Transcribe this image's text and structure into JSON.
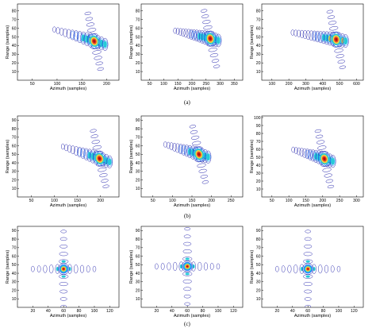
{
  "figure": {
    "captions": [
      "(a)",
      "(b)",
      "(c)"
    ],
    "panels": [
      {
        "row": 0,
        "col": 0,
        "xlabel": "Azimuth (samples)",
        "ylabel": "Range (samples)",
        "xticks": [
          50,
          100,
          150,
          200
        ],
        "yticks": [
          10,
          20,
          30,
          40,
          50,
          60,
          70,
          80
        ],
        "xlim": [
          20,
          225
        ],
        "ylim": [
          0,
          88
        ],
        "layout": "tilted",
        "center": [
          175,
          45
        ],
        "angle": -18,
        "nlobes": 7,
        "lobe_spacing": 14
      },
      {
        "row": 0,
        "col": 1,
        "xlabel": "Azimuth (samples)",
        "ylabel": "Range (samples)",
        "xticks": [
          50,
          100,
          150,
          200,
          250,
          300,
          350
        ],
        "yticks": [
          10,
          20,
          30,
          40,
          50,
          60,
          70,
          80
        ],
        "xlim": [
          20,
          380
        ],
        "ylim": [
          0,
          88
        ],
        "layout": "tilted",
        "center": [
          265,
          48
        ],
        "angle": -14,
        "nlobes": 9,
        "lobe_spacing": 18
      },
      {
        "row": 0,
        "col": 2,
        "xlabel": "Azimuth (samples)",
        "ylabel": "Range (samples)",
        "xticks": [
          100,
          200,
          300,
          400,
          500,
          600
        ],
        "yticks": [
          10,
          20,
          30,
          40,
          50,
          60,
          70,
          80
        ],
        "xlim": [
          40,
          640
        ],
        "ylim": [
          0,
          88
        ],
        "layout": "tilted",
        "center": [
          480,
          47
        ],
        "angle": -10,
        "nlobes": 10,
        "lobe_spacing": 34
      },
      {
        "row": 1,
        "col": 0,
        "xlabel": "Azimuth (samples)",
        "ylabel": "Range (samples)",
        "xticks": [
          50,
          100,
          150,
          200
        ],
        "yticks": [
          10,
          20,
          30,
          40,
          50,
          60,
          70,
          80,
          90
        ],
        "xlim": [
          20,
          240
        ],
        "ylim": [
          0,
          95
        ],
        "layout": "tilted",
        "center": [
          198,
          45
        ],
        "angle": -20,
        "nlobes": 7,
        "lobe_spacing": 14
      },
      {
        "row": 1,
        "col": 1,
        "xlabel": "Azimuth (samples)",
        "ylabel": "Range (samples)",
        "xticks": [
          50,
          100,
          150,
          200,
          250
        ],
        "yticks": [
          10,
          20,
          30,
          40,
          50,
          60,
          70,
          80,
          90
        ],
        "xlim": [
          20,
          280
        ],
        "ylim": [
          0,
          95
        ],
        "layout": "tilted",
        "center": [
          168,
          50
        ],
        "angle": -18,
        "nlobes": 7,
        "lobe_spacing": 15
      },
      {
        "row": 1,
        "col": 2,
        "xlabel": "Azimuth (samples)",
        "ylabel": "Range (samples)",
        "xticks": [
          50,
          100,
          150,
          200,
          250,
          300
        ],
        "yticks": [
          10,
          20,
          30,
          40,
          50,
          60,
          70,
          80,
          90,
          100
        ],
        "xlim": [
          20,
          320
        ],
        "ylim": [
          0,
          102
        ],
        "layout": "tilted",
        "center": [
          205,
          48
        ],
        "angle": -18,
        "nlobes": 7,
        "lobe_spacing": 16
      },
      {
        "row": 2,
        "col": 0,
        "xlabel": "Azimuth (samples)",
        "ylabel": "Range (samples)",
        "xticks": [
          20,
          40,
          60,
          80,
          100,
          120
        ],
        "yticks": [
          10,
          20,
          30,
          40,
          50,
          60,
          70,
          80,
          90
        ],
        "xlim": [
          0,
          132
        ],
        "ylim": [
          0,
          95
        ],
        "layout": "cross",
        "center": [
          60,
          45
        ],
        "nlobes": 5,
        "lobe_spacing": 8
      },
      {
        "row": 2,
        "col": 1,
        "xlabel": "Azimuth (samples)",
        "ylabel": "Range (samples)",
        "xticks": [
          20,
          40,
          60,
          80,
          100,
          120
        ],
        "yticks": [
          10,
          20,
          30,
          40,
          50,
          60,
          70,
          80,
          90
        ],
        "xlim": [
          0,
          132
        ],
        "ylim": [
          0,
          95
        ],
        "layout": "cross",
        "center": [
          60,
          48
        ],
        "nlobes": 5,
        "lobe_spacing": 8
      },
      {
        "row": 2,
        "col": 2,
        "xlabel": "Azimuth (samples)",
        "ylabel": "Range (samples)",
        "xticks": [
          20,
          40,
          60,
          80,
          100,
          120
        ],
        "yticks": [
          10,
          20,
          30,
          40,
          50,
          60,
          70,
          80,
          90
        ],
        "xlim": [
          0,
          132
        ],
        "ylim": [
          0,
          95
        ],
        "layout": "cross",
        "center": [
          60,
          45
        ],
        "nlobes": 5,
        "lobe_spacing": 8
      }
    ],
    "colors": {
      "low": "#1a1aa8",
      "mid_low": "#2a7fff",
      "mid": "#27c9d9",
      "mid_high": "#f2d23c",
      "high": "#e8432a",
      "peak": "#b01010"
    }
  }
}
